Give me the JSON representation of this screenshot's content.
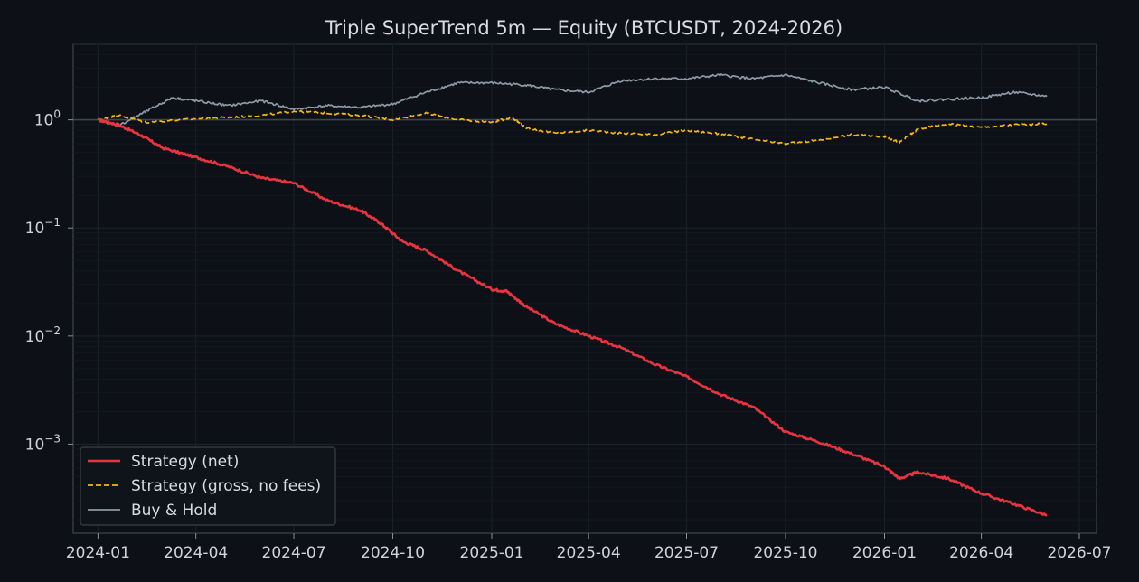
{
  "chart_data": {
    "type": "line",
    "title": "Triple SuperTrend 5m — Equity (BTCUSDT, 2024-2026)",
    "xlabel": "",
    "ylabel": "",
    "y_scale": "log",
    "ylim": [
      0.00015,
      5.0
    ],
    "xlim": [
      "2023-12-09",
      "2026-07-17"
    ],
    "x_ticks": [
      "2024-01",
      "2024-04",
      "2024-07",
      "2024-10",
      "2025-01",
      "2025-04",
      "2025-07",
      "2025-10",
      "2026-01",
      "2026-04",
      "2026-07"
    ],
    "y_ticks": [
      {
        "value": 0.001,
        "base": "10",
        "exp": "−3"
      },
      {
        "value": 0.01,
        "base": "10",
        "exp": "−2"
      },
      {
        "value": 0.1,
        "base": "10",
        "exp": "−1"
      },
      {
        "value": 1,
        "base": "10",
        "exp": "0"
      }
    ],
    "grid": true,
    "reference_line": 1.0,
    "legend_position": "lower left",
    "series": [
      {
        "name": "Strategy (net)",
        "color": "#e8343f",
        "style": "solid",
        "points": [
          [
            "2024-01-01",
            1.0
          ],
          [
            "2024-01-20",
            0.9
          ],
          [
            "2024-02-10",
            0.72
          ],
          [
            "2024-03-01",
            0.55
          ],
          [
            "2024-04-01",
            0.45
          ],
          [
            "2024-05-01",
            0.37
          ],
          [
            "2024-06-01",
            0.29
          ],
          [
            "2024-07-01",
            0.26
          ],
          [
            "2024-08-01",
            0.18
          ],
          [
            "2024-09-01",
            0.145
          ],
          [
            "2024-09-20",
            0.11
          ],
          [
            "2024-10-10",
            0.075
          ],
          [
            "2024-11-01",
            0.062
          ],
          [
            "2024-12-01",
            0.04
          ],
          [
            "2025-01-01",
            0.027
          ],
          [
            "2025-01-15",
            0.026
          ],
          [
            "2025-02-01",
            0.019
          ],
          [
            "2025-03-01",
            0.013
          ],
          [
            "2025-04-01",
            0.01
          ],
          [
            "2025-05-01",
            0.0078
          ],
          [
            "2025-06-01",
            0.0055
          ],
          [
            "2025-07-01",
            0.0042
          ],
          [
            "2025-08-01",
            0.0029
          ],
          [
            "2025-09-01",
            0.0022
          ],
          [
            "2025-10-01",
            0.0013
          ],
          [
            "2025-11-01",
            0.00105
          ],
          [
            "2025-12-01",
            0.00082
          ],
          [
            "2026-01-01",
            0.00062
          ],
          [
            "2026-01-15",
            0.00048
          ],
          [
            "2026-02-01",
            0.00055
          ],
          [
            "2026-03-01",
            0.00048
          ],
          [
            "2026-04-01",
            0.00035
          ],
          [
            "2026-05-01",
            0.00028
          ],
          [
            "2026-06-01",
            0.00022
          ]
        ]
      },
      {
        "name": "Strategy (gross, no fees)",
        "color": "#f5b70f",
        "style": "dashed",
        "points": [
          [
            "2024-01-01",
            1.0
          ],
          [
            "2024-01-20",
            1.1
          ],
          [
            "2024-02-15",
            0.95
          ],
          [
            "2024-04-01",
            1.02
          ],
          [
            "2024-05-01",
            1.05
          ],
          [
            "2024-06-01",
            1.1
          ],
          [
            "2024-07-01",
            1.2
          ],
          [
            "2024-08-01",
            1.15
          ],
          [
            "2024-09-01",
            1.1
          ],
          [
            "2024-10-01",
            1.0
          ],
          [
            "2024-11-01",
            1.15
          ],
          [
            "2024-12-01",
            1.0
          ],
          [
            "2025-01-01",
            0.95
          ],
          [
            "2025-01-20",
            1.05
          ],
          [
            "2025-02-01",
            0.85
          ],
          [
            "2025-03-01",
            0.75
          ],
          [
            "2025-04-01",
            0.8
          ],
          [
            "2025-05-01",
            0.75
          ],
          [
            "2025-06-01",
            0.73
          ],
          [
            "2025-07-01",
            0.8
          ],
          [
            "2025-08-01",
            0.74
          ],
          [
            "2025-09-01",
            0.66
          ],
          [
            "2025-10-01",
            0.6
          ],
          [
            "2025-11-01",
            0.65
          ],
          [
            "2025-12-01",
            0.73
          ],
          [
            "2026-01-01",
            0.7
          ],
          [
            "2026-01-15",
            0.62
          ],
          [
            "2026-02-01",
            0.82
          ],
          [
            "2026-03-01",
            0.92
          ],
          [
            "2026-04-01",
            0.85
          ],
          [
            "2026-05-01",
            0.9
          ],
          [
            "2026-06-01",
            0.92
          ]
        ]
      },
      {
        "name": "Buy & Hold",
        "color": "#8d99a4",
        "style": "solid",
        "points": [
          [
            "2024-01-01",
            1.0
          ],
          [
            "2024-01-20",
            0.88
          ],
          [
            "2024-02-15",
            1.2
          ],
          [
            "2024-03-10",
            1.6
          ],
          [
            "2024-04-01",
            1.5
          ],
          [
            "2024-05-01",
            1.35
          ],
          [
            "2024-06-01",
            1.5
          ],
          [
            "2024-07-01",
            1.25
          ],
          [
            "2024-08-01",
            1.35
          ],
          [
            "2024-09-01",
            1.3
          ],
          [
            "2024-10-01",
            1.4
          ],
          [
            "2024-11-01",
            1.8
          ],
          [
            "2024-12-01",
            2.2
          ],
          [
            "2025-01-01",
            2.2
          ],
          [
            "2025-02-01",
            2.1
          ],
          [
            "2025-03-01",
            1.9
          ],
          [
            "2025-04-01",
            1.8
          ],
          [
            "2025-05-01",
            2.3
          ],
          [
            "2025-06-01",
            2.4
          ],
          [
            "2025-07-01",
            2.4
          ],
          [
            "2025-08-01",
            2.6
          ],
          [
            "2025-09-01",
            2.4
          ],
          [
            "2025-10-01",
            2.6
          ],
          [
            "2025-11-01",
            2.2
          ],
          [
            "2025-12-01",
            1.9
          ],
          [
            "2026-01-01",
            2.0
          ],
          [
            "2026-02-01",
            1.5
          ],
          [
            "2026-03-01",
            1.55
          ],
          [
            "2026-04-01",
            1.6
          ],
          [
            "2026-05-01",
            1.8
          ],
          [
            "2026-06-01",
            1.65
          ]
        ]
      }
    ]
  }
}
